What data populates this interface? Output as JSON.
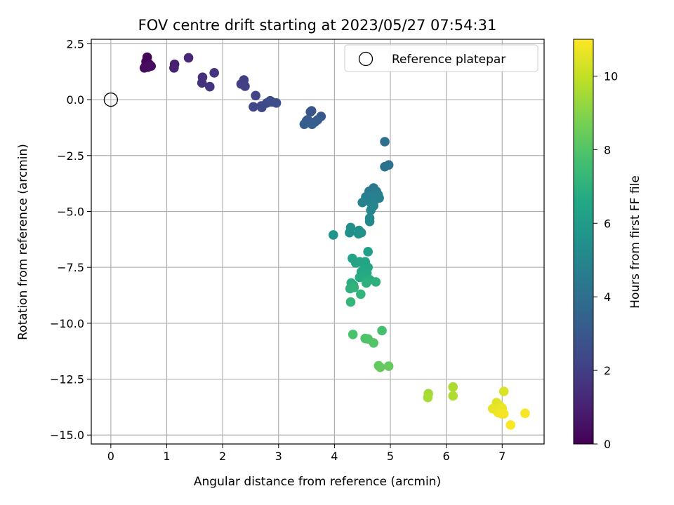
{
  "chart_data": {
    "type": "scatter",
    "title": "FOV centre drift starting at 2023/05/27 07:54:31",
    "xlabel": "Angular distance from reference (arcmin)",
    "ylabel": "Rotation from reference (arcmin)",
    "xlim": [
      -0.35,
      7.75
    ],
    "ylim": [
      -15.4,
      2.7
    ],
    "xticks": [
      0,
      1,
      2,
      3,
      4,
      5,
      6,
      7
    ],
    "yticks": [
      2.5,
      0.0,
      -2.5,
      -5.0,
      -7.5,
      -10.0,
      -12.5,
      -15.0
    ],
    "xtick_labels": [
      "0",
      "1",
      "2",
      "3",
      "4",
      "5",
      "6",
      "7"
    ],
    "ytick_labels": [
      "2.5",
      "0.0",
      "−2.5",
      "−5.0",
      "−7.5",
      "−10.0",
      "−12.5",
      "−15.0"
    ],
    "grid": true,
    "legend": {
      "position": "top-right",
      "entries": [
        "Reference platepar"
      ]
    },
    "reference_point": {
      "x": 0,
      "y": 0,
      "label": "Reference platepar"
    },
    "colorbar": {
      "label": "Hours from first FF file",
      "range": [
        0,
        11
      ],
      "ticks": [
        0,
        2,
        4,
        6,
        8,
        10
      ],
      "tick_labels": [
        "0",
        "2",
        "4",
        "6",
        "8",
        "10"
      ],
      "colormap": "viridis"
    },
    "points": [
      {
        "x": 0.65,
        "y": 1.9,
        "t": 0.05
      },
      {
        "x": 0.63,
        "y": 1.7,
        "t": 0.1
      },
      {
        "x": 0.68,
        "y": 1.6,
        "t": 0.15
      },
      {
        "x": 0.62,
        "y": 1.5,
        "t": 0.2
      },
      {
        "x": 0.66,
        "y": 1.45,
        "t": 0.25
      },
      {
        "x": 0.7,
        "y": 1.55,
        "t": 0.3
      },
      {
        "x": 0.6,
        "y": 1.42,
        "t": 0.35
      },
      {
        "x": 0.72,
        "y": 1.5,
        "t": 0.4
      },
      {
        "x": 1.14,
        "y": 1.58,
        "t": 0.9
      },
      {
        "x": 1.13,
        "y": 1.42,
        "t": 1.0
      },
      {
        "x": 1.39,
        "y": 1.87,
        "t": 1.2
      },
      {
        "x": 1.64,
        "y": 1.0,
        "t": 1.5
      },
      {
        "x": 1.63,
        "y": 0.75,
        "t": 1.55
      },
      {
        "x": 1.85,
        "y": 1.2,
        "t": 1.65
      },
      {
        "x": 1.77,
        "y": 0.58,
        "t": 1.7
      },
      {
        "x": 2.38,
        "y": 0.88,
        "t": 2.0
      },
      {
        "x": 2.33,
        "y": 0.7,
        "t": 2.05
      },
      {
        "x": 2.4,
        "y": 0.6,
        "t": 2.1
      },
      {
        "x": 2.59,
        "y": 0.18,
        "t": 2.2
      },
      {
        "x": 2.55,
        "y": -0.32,
        "t": 2.3
      },
      {
        "x": 2.69,
        "y": -0.28,
        "t": 2.35
      },
      {
        "x": 2.7,
        "y": -0.35,
        "t": 2.4
      },
      {
        "x": 2.79,
        "y": -0.15,
        "t": 2.45
      },
      {
        "x": 2.85,
        "y": -0.05,
        "t": 2.5
      },
      {
        "x": 2.88,
        "y": -0.1,
        "t": 2.55
      },
      {
        "x": 2.96,
        "y": -0.15,
        "t": 2.6
      },
      {
        "x": 3.59,
        "y": -0.5,
        "t": 2.9
      },
      {
        "x": 3.57,
        "y": -0.55,
        "t": 2.95
      },
      {
        "x": 3.76,
        "y": -0.75,
        "t": 3.0
      },
      {
        "x": 3.52,
        "y": -0.9,
        "t": 3.05
      },
      {
        "x": 3.65,
        "y": -1.0,
        "t": 3.1
      },
      {
        "x": 3.5,
        "y": -0.95,
        "t": 3.15
      },
      {
        "x": 3.7,
        "y": -0.9,
        "t": 3.2
      },
      {
        "x": 3.46,
        "y": -1.1,
        "t": 3.25
      },
      {
        "x": 3.6,
        "y": -1.1,
        "t": 3.3
      },
      {
        "x": 4.9,
        "y": -1.88,
        "t": 4.0
      },
      {
        "x": 4.97,
        "y": -2.92,
        "t": 4.1
      },
      {
        "x": 4.9,
        "y": -3.0,
        "t": 4.15
      },
      {
        "x": 4.7,
        "y": -3.95,
        "t": 4.4
      },
      {
        "x": 4.62,
        "y": -4.1,
        "t": 4.5
      },
      {
        "x": 4.75,
        "y": -4.1,
        "t": 4.55
      },
      {
        "x": 4.78,
        "y": -4.25,
        "t": 4.6
      },
      {
        "x": 4.56,
        "y": -4.35,
        "t": 4.65
      },
      {
        "x": 4.68,
        "y": -4.3,
        "t": 4.7
      },
      {
        "x": 4.8,
        "y": -4.4,
        "t": 4.75
      },
      {
        "x": 4.72,
        "y": -4.5,
        "t": 4.8
      },
      {
        "x": 4.5,
        "y": -4.6,
        "t": 4.85
      },
      {
        "x": 4.66,
        "y": -4.65,
        "t": 4.9
      },
      {
        "x": 4.7,
        "y": -4.75,
        "t": 4.95
      },
      {
        "x": 4.65,
        "y": -4.95,
        "t": 5.0
      },
      {
        "x": 4.63,
        "y": -5.3,
        "t": 5.1
      },
      {
        "x": 4.63,
        "y": -5.45,
        "t": 5.15
      },
      {
        "x": 4.29,
        "y": -5.72,
        "t": 5.4
      },
      {
        "x": 4.27,
        "y": -5.95,
        "t": 5.45
      },
      {
        "x": 4.44,
        "y": -5.85,
        "t": 5.5
      },
      {
        "x": 4.48,
        "y": -5.95,
        "t": 5.55
      },
      {
        "x": 4.43,
        "y": -6.0,
        "t": 5.6
      },
      {
        "x": 3.98,
        "y": -6.05,
        "t": 5.7
      },
      {
        "x": 4.6,
        "y": -6.8,
        "t": 6.2
      },
      {
        "x": 4.32,
        "y": -7.1,
        "t": 6.3
      },
      {
        "x": 4.38,
        "y": -7.3,
        "t": 6.35
      },
      {
        "x": 4.45,
        "y": -7.25,
        "t": 6.4
      },
      {
        "x": 4.55,
        "y": -7.25,
        "t": 6.45
      },
      {
        "x": 4.6,
        "y": -7.5,
        "t": 6.5
      },
      {
        "x": 4.52,
        "y": -7.6,
        "t": 6.55
      },
      {
        "x": 4.48,
        "y": -7.7,
        "t": 6.6
      },
      {
        "x": 4.58,
        "y": -7.75,
        "t": 6.65
      },
      {
        "x": 4.45,
        "y": -7.95,
        "t": 6.7
      },
      {
        "x": 4.55,
        "y": -8.0,
        "t": 6.75
      },
      {
        "x": 4.63,
        "y": -8.05,
        "t": 6.8
      },
      {
        "x": 4.3,
        "y": -8.2,
        "t": 6.85
      },
      {
        "x": 4.34,
        "y": -8.3,
        "t": 6.9
      },
      {
        "x": 4.57,
        "y": -8.2,
        "t": 6.95
      },
      {
        "x": 4.74,
        "y": -8.15,
        "t": 7.0
      },
      {
        "x": 4.28,
        "y": -8.45,
        "t": 7.05
      },
      {
        "x": 4.35,
        "y": -8.4,
        "t": 7.1
      },
      {
        "x": 4.47,
        "y": -8.7,
        "t": 7.15
      },
      {
        "x": 4.29,
        "y": -9.05,
        "t": 7.2
      },
      {
        "x": 4.85,
        "y": -10.33,
        "t": 7.7
      },
      {
        "x": 4.33,
        "y": -10.5,
        "t": 7.8
      },
      {
        "x": 4.55,
        "y": -10.68,
        "t": 7.9
      },
      {
        "x": 4.6,
        "y": -10.7,
        "t": 7.95
      },
      {
        "x": 4.7,
        "y": -10.88,
        "t": 8.0
      },
      {
        "x": 4.79,
        "y": -11.9,
        "t": 8.3
      },
      {
        "x": 4.82,
        "y": -11.97,
        "t": 8.35
      },
      {
        "x": 4.97,
        "y": -11.92,
        "t": 8.4
      },
      {
        "x": 5.68,
        "y": -13.15,
        "t": 9.5
      },
      {
        "x": 5.67,
        "y": -13.32,
        "t": 9.55
      },
      {
        "x": 6.12,
        "y": -12.85,
        "t": 9.6
      },
      {
        "x": 6.12,
        "y": -13.25,
        "t": 9.65
      },
      {
        "x": 7.03,
        "y": -13.05,
        "t": 10.4
      },
      {
        "x": 6.9,
        "y": -13.55,
        "t": 10.5
      },
      {
        "x": 6.96,
        "y": -13.7,
        "t": 10.55
      },
      {
        "x": 6.83,
        "y": -13.82,
        "t": 10.6
      },
      {
        "x": 6.9,
        "y": -13.9,
        "t": 10.65
      },
      {
        "x": 7.0,
        "y": -13.8,
        "t": 10.7
      },
      {
        "x": 6.93,
        "y": -14.0,
        "t": 10.75
      },
      {
        "x": 6.99,
        "y": -14.05,
        "t": 10.8
      },
      {
        "x": 7.03,
        "y": -14.05,
        "t": 10.85
      },
      {
        "x": 7.41,
        "y": -14.03,
        "t": 10.9
      },
      {
        "x": 7.15,
        "y": -14.55,
        "t": 10.95
      }
    ]
  }
}
